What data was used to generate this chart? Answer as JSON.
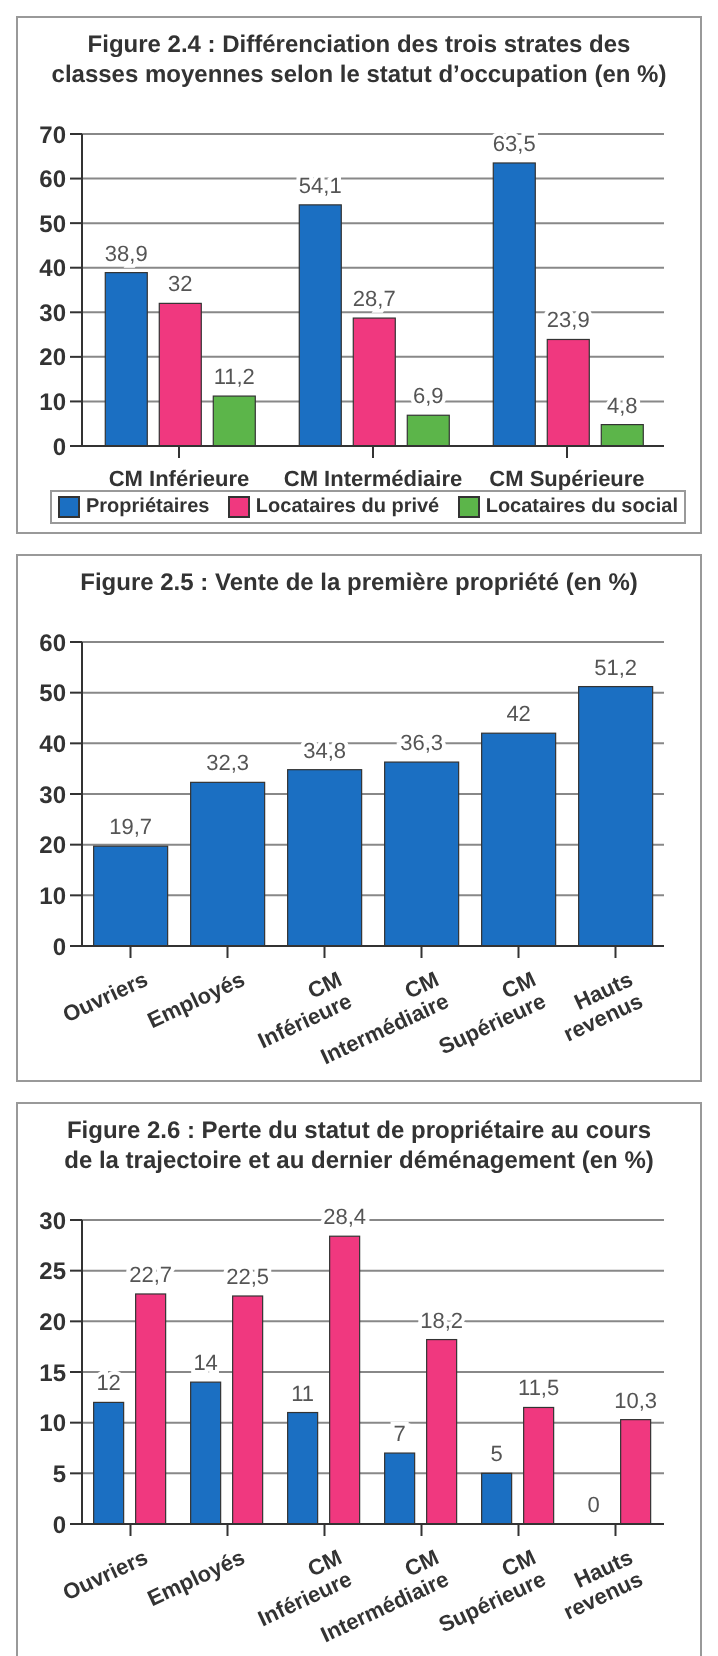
{
  "chart_data": [
    {
      "type": "bar",
      "title": "Figure 2.4 : Différenciation des trois strates des classes moyennes selon le statut d’occupation (en %)",
      "categories": [
        "CM Inférieure",
        "CM Intermédiaire",
        "CM Supérieure"
      ],
      "series": [
        {
          "name": "Propriétaires",
          "color": "#1b6fc2",
          "values": [
            38.9,
            54.1,
            63.5
          ],
          "value_labels": [
            "38,9",
            "54,1",
            "63,5"
          ]
        },
        {
          "name": "Locataires du privé",
          "color": "#f0387f",
          "values": [
            32,
            28.7,
            23.9
          ],
          "value_labels": [
            "32",
            "28,7",
            "23,9"
          ]
        },
        {
          "name": "Locataires du social",
          "color": "#5cb54a",
          "values": [
            11.2,
            6.9,
            4.8
          ],
          "value_labels": [
            "11,2",
            "6,9",
            "4,8"
          ]
        }
      ],
      "ylim": [
        0,
        70
      ],
      "yticks": [
        0,
        10,
        20,
        30,
        40,
        50,
        60,
        70
      ],
      "grid": "y",
      "legend": "bottom"
    },
    {
      "type": "bar",
      "title": "Figure 2.5 : Vente de la première propriété (en %)",
      "categories": [
        "Ouvriers",
        "Employés",
        "CM\nInférieure",
        "CM\nIntermédiaire",
        "CM\nSupérieure",
        "Hauts\nrevenus"
      ],
      "series": [
        {
          "color": "#1b6fc2",
          "values": [
            19.7,
            32.3,
            34.8,
            36.3,
            42,
            51.2
          ],
          "value_labels": [
            "19,7",
            "32,3",
            "34,8",
            "36,3",
            "42",
            "51,2"
          ]
        }
      ],
      "ylim": [
        0,
        60
      ],
      "yticks": [
        0,
        10,
        20,
        30,
        40,
        50,
        60
      ],
      "grid": "y"
    },
    {
      "type": "bar",
      "title": "Figure 2.6 : Perte du statut de propriétaire au cours de la trajectoire et au dernier déménagement (en %)",
      "categories": [
        "Ouvriers",
        "Employés",
        "CM\nInférieure",
        "CM\nIntermédiaire",
        "CM\nSupérieure",
        "Hauts\nrevenus"
      ],
      "series": [
        {
          "color": "#1b6fc2",
          "values": [
            12,
            14,
            11,
            7,
            5,
            0
          ],
          "value_labels": [
            "12",
            "14",
            "11",
            "7",
            "5",
            null
          ]
        },
        {
          "color": "#f0387f",
          "values": [
            22.7,
            22.5,
            28.4,
            18.2,
            11.5,
            10.3
          ],
          "value_labels": [
            "22,7",
            "22,5",
            "28,4",
            "18,2",
            "11,5",
            "10,3"
          ]
        }
      ],
      "ylim": [
        0,
        30
      ],
      "yticks": [
        0,
        5,
        10,
        15,
        20,
        25,
        30
      ],
      "grid": "y",
      "annotations": [
        {
          "text": "0",
          "x": "Hauts\nrevenus",
          "y": 0
        }
      ]
    }
  ]
}
